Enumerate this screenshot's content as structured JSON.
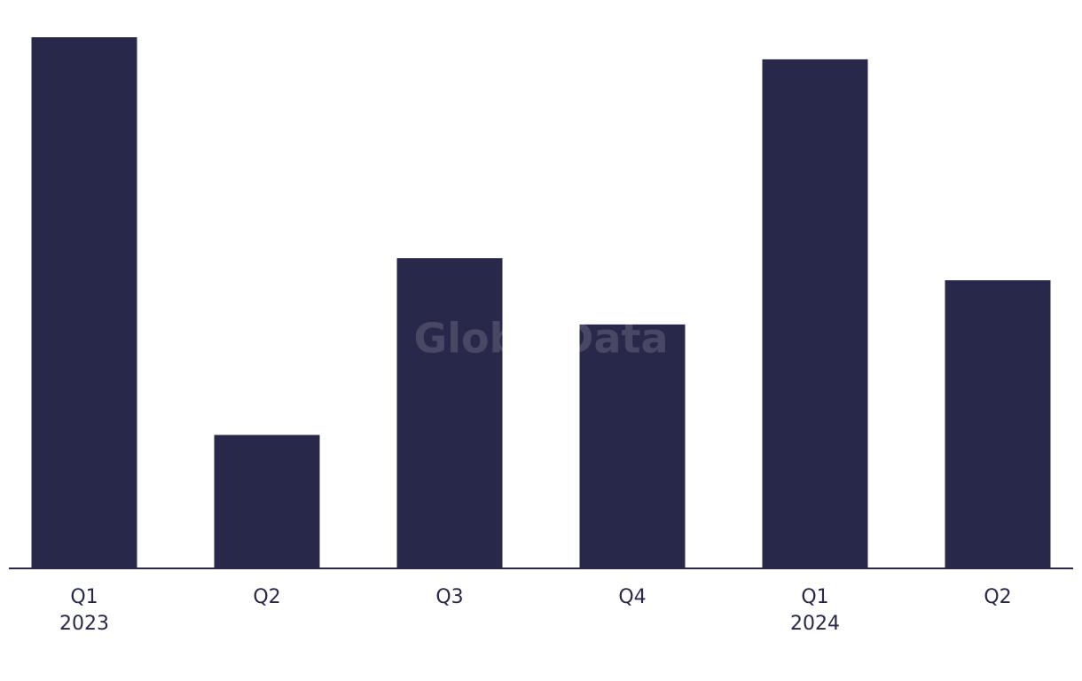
{
  "chart_data": {
    "type": "bar",
    "categories": [
      "Q1",
      "Q2",
      "Q3",
      "Q4",
      "Q1",
      "Q2"
    ],
    "year_labels": [
      "2023",
      null,
      null,
      null,
      "2024",
      null
    ],
    "values": [
      24,
      6,
      14,
      11,
      23,
      13
    ],
    "color": "#28294a",
    "watermark": "GlobalData"
  }
}
